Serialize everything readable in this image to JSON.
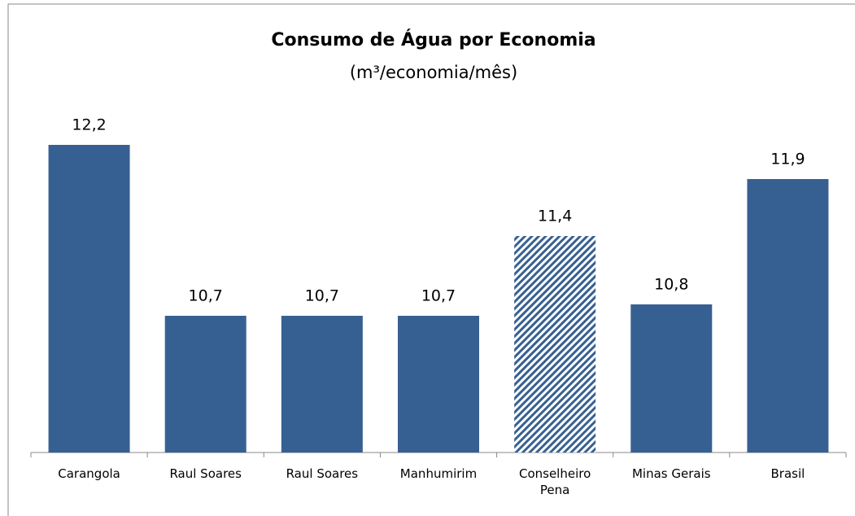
{
  "chart_data": {
    "type": "bar",
    "title": "Consumo de Água por Economia",
    "subtitle": "(m³/economia/mês)",
    "categories": [
      "Carangola",
      "Raul Soares",
      "Raul Soares",
      "Manhumirim",
      "Conselheiro Pena",
      "Minas Gerais",
      "Brasil"
    ],
    "values": [
      12.2,
      10.7,
      10.7,
      10.7,
      11.4,
      10.8,
      11.9
    ],
    "value_labels": [
      "12,2",
      "10,7",
      "10,7",
      "10,7",
      "11,4",
      "10,8",
      "11,9"
    ],
    "color": "#376092",
    "hatched": [
      4
    ],
    "ylim": [
      9.5,
      12.5
    ],
    "grid": false
  }
}
